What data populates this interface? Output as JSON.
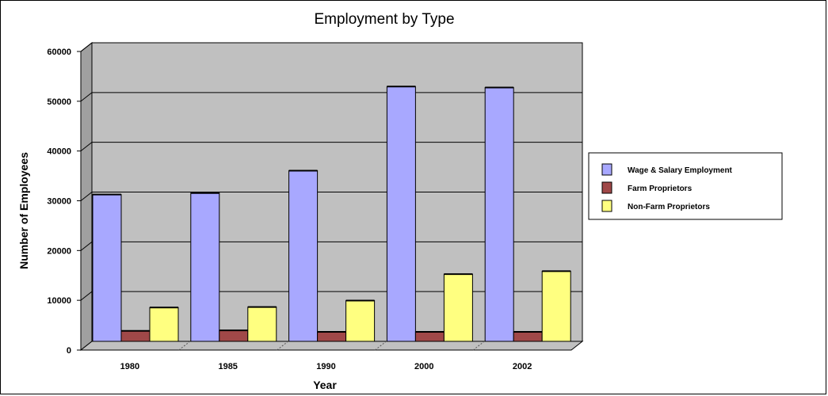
{
  "chart_data": {
    "type": "bar",
    "title": "Employment by Type",
    "xlabel": "Year",
    "ylabel": "Number of Employees",
    "categories": [
      "1980",
      "1985",
      "1990",
      "2000",
      "2002"
    ],
    "ylim": [
      0,
      60000
    ],
    "yticks": [
      0,
      10000,
      20000,
      30000,
      40000,
      50000,
      60000
    ],
    "grid": true,
    "legend_position": "right",
    "series": [
      {
        "name": "Wage & Salary Employment",
        "color": "#a8a8ff",
        "values": [
          29500,
          29800,
          34300,
          51200,
          51000
        ]
      },
      {
        "name": "Farm Proprietors",
        "color": "#a04848",
        "values": [
          2100,
          2200,
          1900,
          1900,
          1900
        ]
      },
      {
        "name": "Non-Farm Proprietors",
        "color": "#ffff80",
        "values": [
          6800,
          6900,
          8200,
          13500,
          14100
        ]
      }
    ]
  }
}
